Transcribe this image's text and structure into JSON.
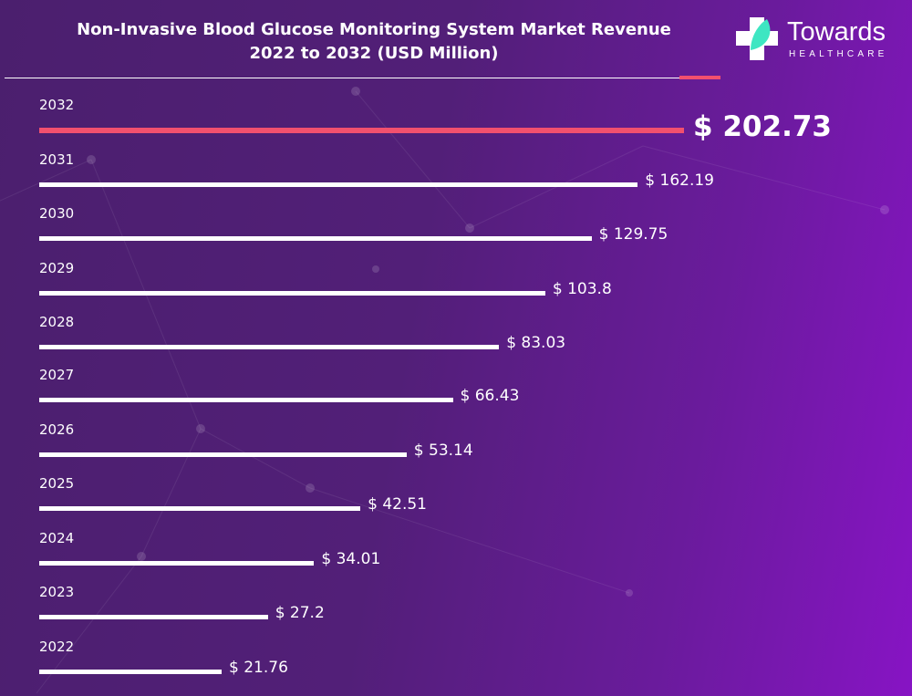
{
  "title_line1": "Non-Invasive Blood Glucose Monitoring System Market Revenue",
  "title_line2": "2022 to 2032 (USD Million)",
  "logo": {
    "word": "Towards",
    "sub": "HEALTHCARE"
  },
  "colors": {
    "bar": "#ffffff",
    "highlight": "#f2506e",
    "background": "#521f78",
    "logo_leaf": "#3ee6c2"
  },
  "chart_data": {
    "type": "bar",
    "orientation": "horizontal",
    "title": "Non-Invasive Blood Glucose Monitoring System Market Revenue 2022 to 2032 (USD Million)",
    "categories": [
      "2032",
      "2031",
      "2030",
      "2029",
      "2028",
      "2027",
      "2026",
      "2025",
      "2024",
      "2023",
      "2022"
    ],
    "values": [
      202.73,
      162.19,
      129.75,
      103.8,
      83.03,
      66.43,
      53.14,
      42.51,
      34.01,
      27.2,
      21.76
    ],
    "labels": [
      "$ 202.73",
      "$ 162.19",
      "$ 129.75",
      "$ 103.8",
      "$ 83.03",
      "$ 66.43",
      "$ 53.14",
      "$ 42.51",
      "$ 34.01",
      "$ 27.2",
      "$ 21.76"
    ],
    "highlight": "2032",
    "grid": false
  }
}
